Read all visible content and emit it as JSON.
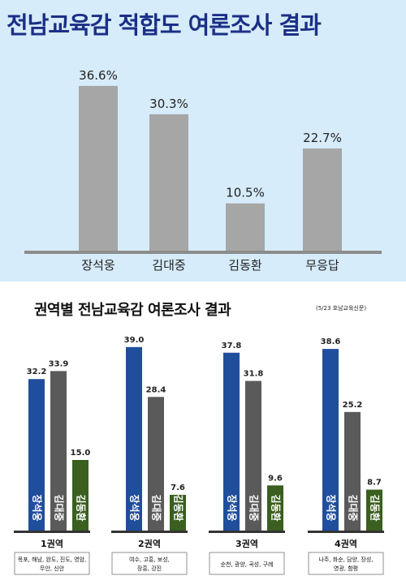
{
  "chart_data": [
    {
      "type": "bar",
      "title": "전남교육감 적합도 여론조사 결과",
      "categories": [
        "장석웅",
        "김대중",
        "김동환",
        "무응답"
      ],
      "values": [
        36.6,
        30.3,
        10.5,
        22.7
      ],
      "value_labels": [
        "36.6%",
        "30.3%",
        "10.5%",
        "22.7%"
      ],
      "ylim": [
        0,
        40
      ],
      "grid": false,
      "color": "#a6a6a6"
    },
    {
      "type": "bar",
      "title": "권역별 전남교육감 여론조사 결과",
      "subtitle": "(5/23 호남교육신문)",
      "categories": [
        "1권역",
        "2권역",
        "3권역",
        "4권역"
      ],
      "category_notes": [
        "목포, 해남, 완도, 진도, 영암, 무안, 신안",
        "여수, 고흥, 보성, 장흥, 강진",
        "순천, 광양, 곡성, 구례",
        "나주, 화순, 담양, 장성, 영광, 함평"
      ],
      "series": [
        {
          "name": "장석웅",
          "values": [
            32.2,
            39.0,
            37.8,
            38.6
          ],
          "color": "#1f4e9c"
        },
        {
          "name": "김대중",
          "values": [
            33.9,
            28.4,
            31.8,
            25.2
          ],
          "color": "#5a5a5a"
        },
        {
          "name": "김동환",
          "values": [
            15.0,
            7.6,
            9.6,
            8.7
          ],
          "color": "#3a5f1f"
        }
      ],
      "value_labels": [
        [
          "32.2",
          "39.0",
          "37.8",
          "38.6"
        ],
        [
          "33.9",
          "28.4",
          "31.8",
          "25.2"
        ],
        [
          "15.0",
          "7.6",
          "9.6",
          "8.7"
        ]
      ],
      "ylim": [
        0,
        40
      ],
      "grid": false
    }
  ]
}
